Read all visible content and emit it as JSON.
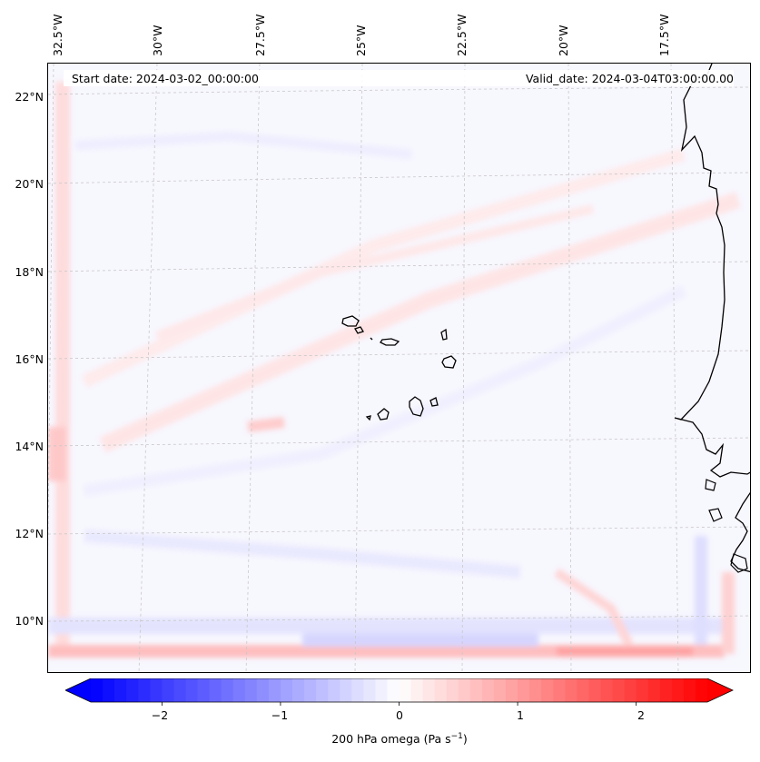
{
  "map": {
    "start_date": "Start date: 2024-03-02_00:00:00",
    "valid_date": "Valid_date: 2024-03-04T03:00:00.00",
    "lon_labels": [
      "32.5°W",
      "30°W",
      "27.5°W",
      "25°W",
      "22.5°W",
      "20°W",
      "17.5°W"
    ],
    "lat_labels": [
      "22°N",
      "20°N",
      "18°N",
      "16°N",
      "14°N",
      "12°N",
      "10°N"
    ],
    "field": "200 hPa omega",
    "field_unit": "Pa s",
    "field_unit_exponent": "−1",
    "grid": true,
    "coastline_color": "#000000"
  },
  "colorbar": {
    "ticks": [
      "−2",
      "−1",
      "0",
      "1",
      "2"
    ],
    "tick_values": [
      -2,
      -1,
      0,
      1,
      2
    ],
    "range": [
      -2.6,
      2.6
    ],
    "extend": "both",
    "cmap": "bwr",
    "label": "200 hPa omega (Pa s",
    "label_sup": "−1",
    "label_close": ")"
  }
}
